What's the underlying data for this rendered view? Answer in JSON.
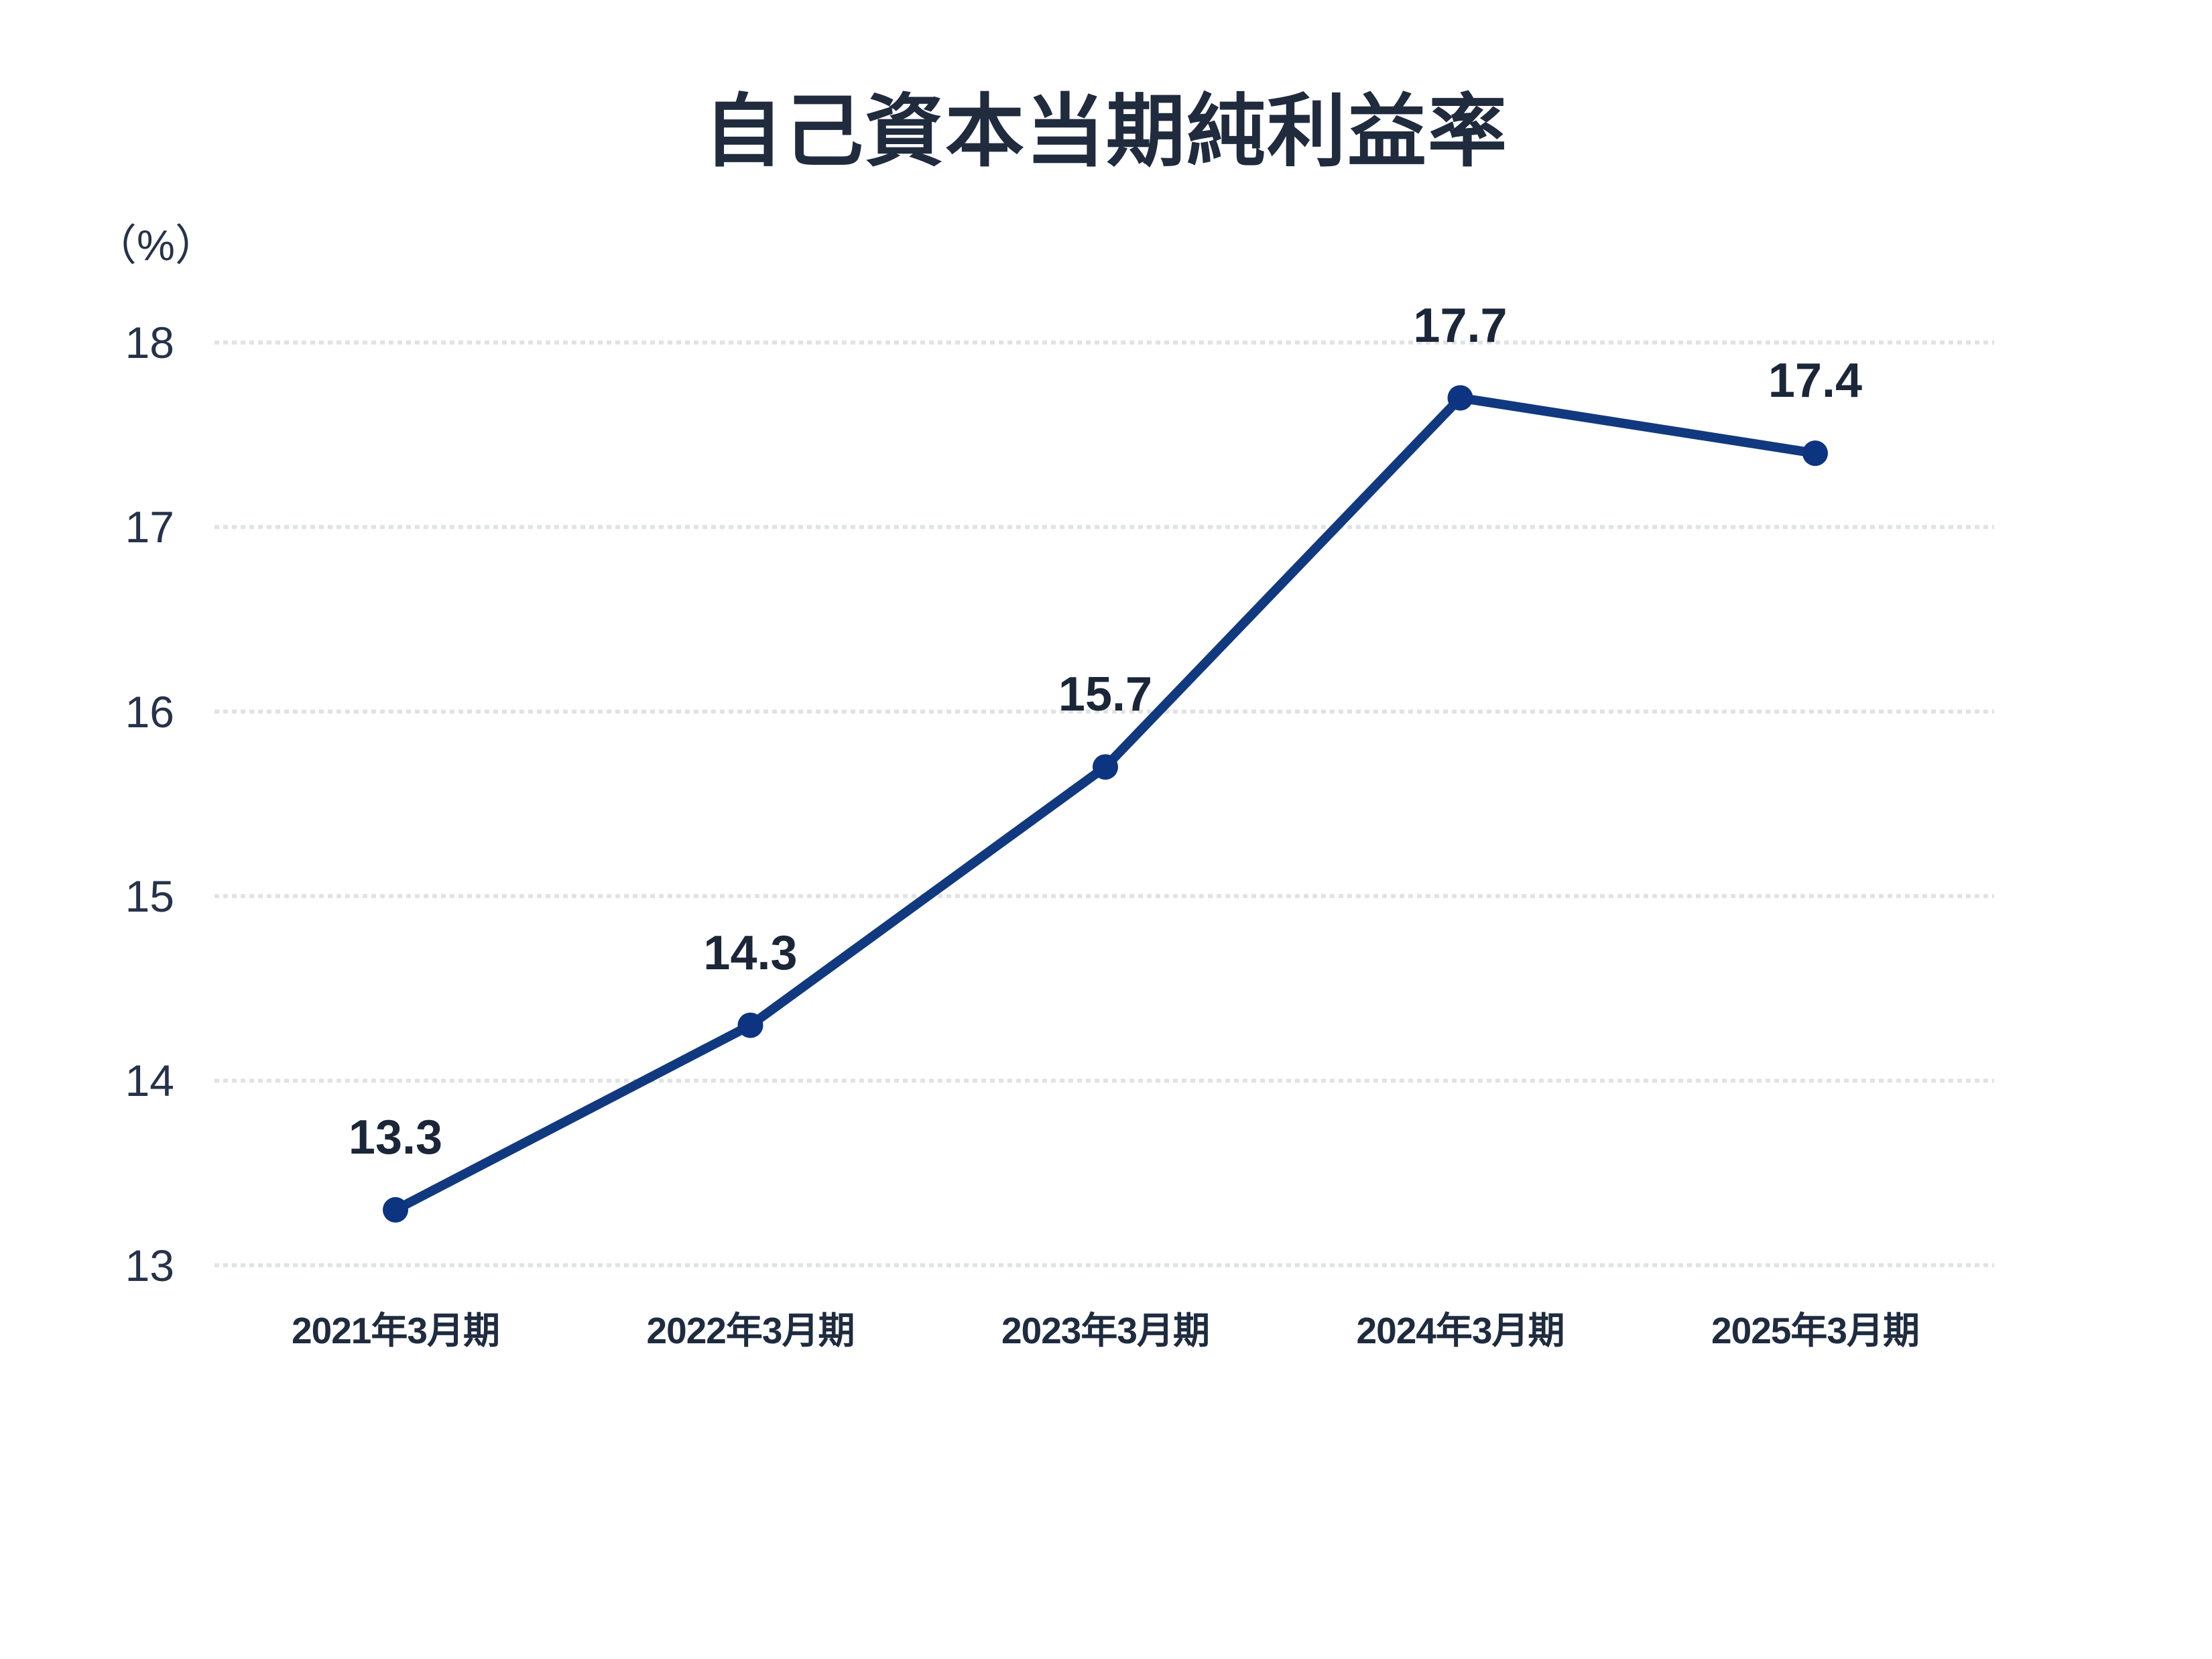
{
  "chart_data": {
    "type": "line",
    "title": "自己資本当期純利益率",
    "unit_label": "（%）",
    "categories": [
      "2021年3月期",
      "2022年3月期",
      "2023年3月期",
      "2024年3月期",
      "2025年3月期"
    ],
    "series": [
      {
        "name": "自己資本当期純利益率",
        "values": [
          13.3,
          14.3,
          15.7,
          17.7,
          17.4
        ],
        "data_labels": [
          "13.3",
          "14.3",
          "15.7",
          "17.7",
          "17.4"
        ]
      }
    ],
    "ylabel": "（%）",
    "xlabel": "",
    "ylim": [
      13,
      18
    ],
    "yticks": [
      18,
      17,
      16,
      15,
      14,
      13
    ],
    "grid": "horizontal-dotted",
    "legend": "none",
    "colors": {
      "line": "#11397f",
      "point": "#0d3480",
      "title_text": "#202b3e",
      "tick_text": "#26324a",
      "data_label_text": "#1b2639",
      "gridline": "#e0e3e4",
      "background": "#ffffff"
    }
  }
}
